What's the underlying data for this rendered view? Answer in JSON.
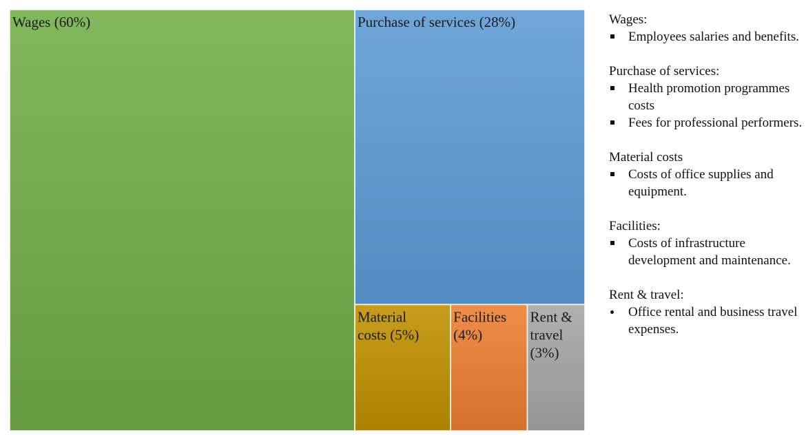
{
  "chart_data": {
    "type": "treemap",
    "tiles": [
      {
        "label": "Wages (60%)",
        "label_lines": [
          "Wages (60%)"
        ],
        "value": 60,
        "color": "#70ad47"
      },
      {
        "label": "Purchase of services (28%)",
        "label_lines": [
          "Purchase of services (28%)"
        ],
        "value": 28,
        "color": "#5b9bd5"
      },
      {
        "label": "Material costs (5%)",
        "label_lines": [
          "Material",
          "costs (5%)"
        ],
        "value": 5,
        "color": "#bf9000"
      },
      {
        "label": "Facilities (4%)",
        "label_lines": [
          "Facilities",
          "(4%)"
        ],
        "value": 4,
        "color": "#ed7d31"
      },
      {
        "label": "Rent & travel (3%)",
        "label_lines": [
          "Rent &",
          "travel",
          "(3%)"
        ],
        "value": 3,
        "color": "#a5a5a5"
      }
    ]
  },
  "legend": [
    {
      "heading": "Wages:",
      "bullet": "square",
      "items": [
        "Employees salaries and benefits."
      ]
    },
    {
      "heading": "Purchase of services:",
      "bullet": "square",
      "items": [
        "Health promotion programmes costs",
        "Fees for professional performers."
      ]
    },
    {
      "heading": "Material costs",
      "bullet": "square",
      "items": [
        "Costs of office supplies and equipment."
      ]
    },
    {
      "heading": "Facilities:",
      "bullet": "square",
      "items": [
        "Costs of infrastructure development and maintenance."
      ]
    },
    {
      "heading": "Rent & travel:",
      "bullet": "dot",
      "items": [
        "Office rental and business travel expenses."
      ]
    }
  ]
}
